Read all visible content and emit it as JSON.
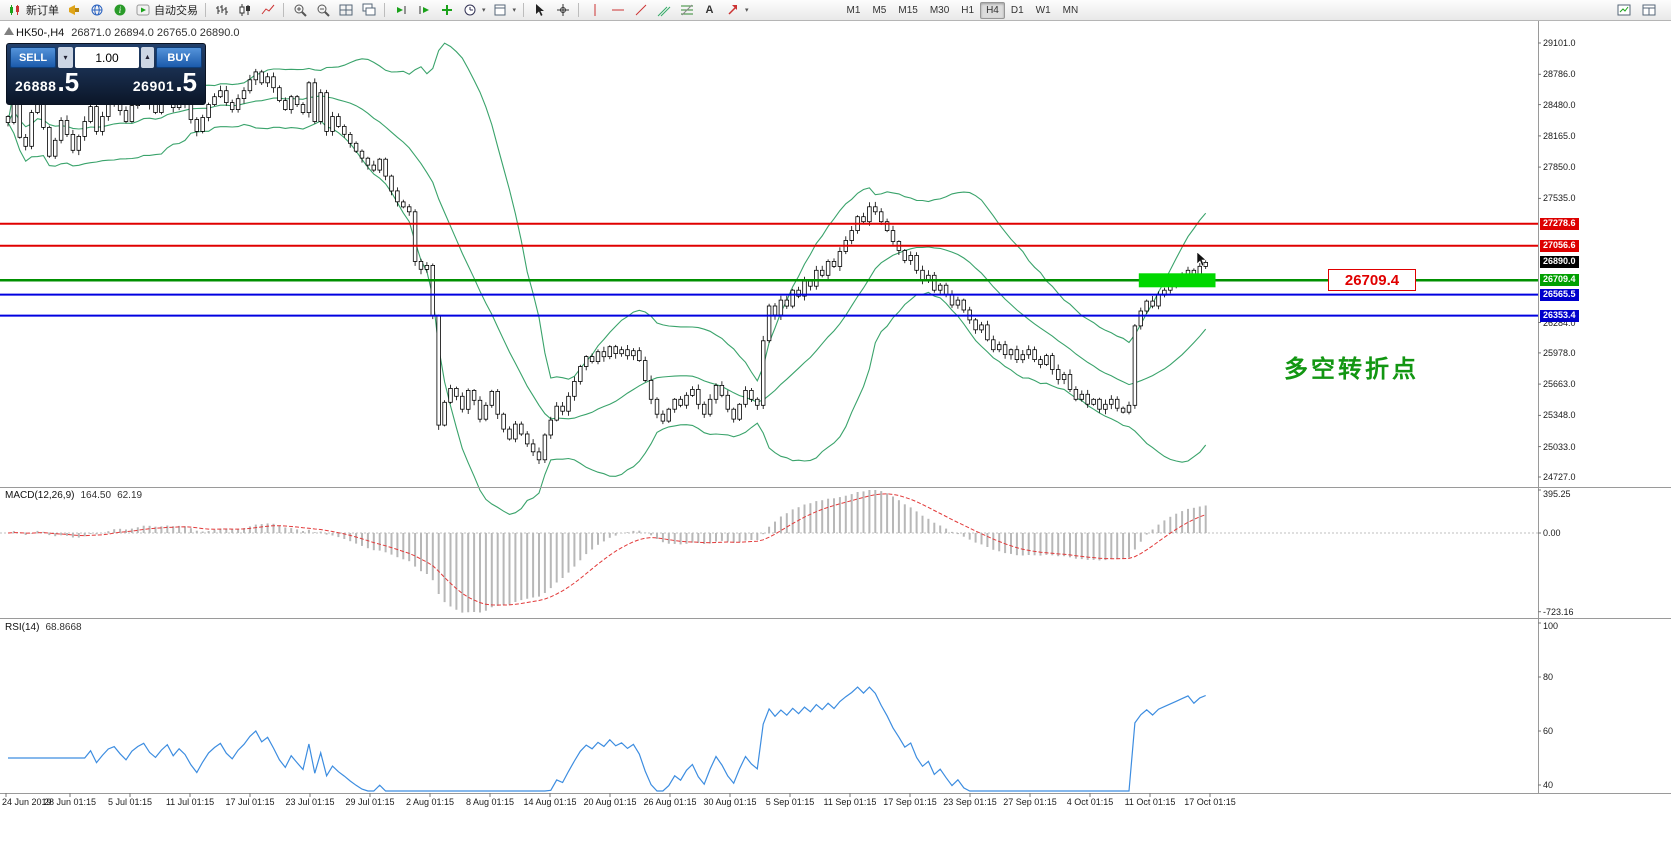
{
  "toolbar": {
    "new_order": "新订单",
    "auto_trading": "自动交易",
    "timeframes": [
      "M1",
      "M5",
      "M15",
      "M30",
      "H1",
      "H4",
      "D1",
      "W1",
      "MN"
    ],
    "active_timeframe": "H4"
  },
  "chart_header": {
    "symbol_period": "HK50-,H4",
    "ohlc": "26871.0 26894.0 26765.0 26890.0"
  },
  "trade_panel": {
    "sell_label": "SELL",
    "buy_label": "BUY",
    "volume": "1.00",
    "sell_price": {
      "main": "26888",
      "big": ".5"
    },
    "buy_price": {
      "main": "26901",
      "big": ".5"
    }
  },
  "annotations": {
    "price_callout": "26709.4",
    "note_cn": "多空转折点"
  },
  "indicators": {
    "macd": {
      "name": "MACD(12,26,9)",
      "value_main": "164.50",
      "value_signal": "62.19",
      "axis_labels": [
        "395.25",
        "0.00",
        "-723.16"
      ],
      "axis_values": [
        395.25,
        0,
        -723.16
      ]
    },
    "rsi": {
      "name": "RSI(14)",
      "value": "68.8668",
      "axis_labels": [
        "100",
        "80",
        "60",
        "40"
      ],
      "axis_values": [
        100,
        80,
        60,
        40
      ]
    }
  },
  "chart_data": {
    "type": "candlestick",
    "title": "HK50-,H4",
    "period": "H4",
    "current_bar_ohlc": {
      "open": 26871.0,
      "high": 26894.0,
      "low": 26765.0,
      "close": 26890.0
    },
    "bid": 26888.5,
    "ask": 26901.5,
    "price_levels": [
      29101.0,
      28786.0,
      28480.0,
      28165.0,
      27850.0,
      27535.0,
      26284.0,
      25978.0,
      25663.0,
      25348.0,
      25033.0,
      24727.0
    ],
    "price_tags": [
      {
        "label": "27278.6",
        "value": 27278.6,
        "color": "#dd0000"
      },
      {
        "label": "27056.6",
        "value": 27056.6,
        "color": "#dd0000"
      },
      {
        "label": "26890.0",
        "value": 26890.0,
        "color": "#000000"
      },
      {
        "label": "26709.4",
        "value": 26709.4,
        "color": "#00a000"
      },
      {
        "label": "26565.5",
        "value": 26565.5,
        "color": "#0000cc"
      },
      {
        "label": "26353.4",
        "value": 26353.4,
        "color": "#0000cc"
      }
    ],
    "hlines": [
      {
        "value": 27278.6,
        "color": "#e00000",
        "width": 2
      },
      {
        "value": 27056.6,
        "color": "#e00000",
        "width": 2
      },
      {
        "value": 26709.4,
        "color": "#009000",
        "width": 2.5
      },
      {
        "value": 26565.5,
        "color": "#0000e0",
        "width": 2
      },
      {
        "value": 26353.4,
        "color": "#0000e0",
        "width": 2
      }
    ],
    "highlight_zone": {
      "value": 26709.4,
      "from_candle": 192,
      "to_candle": 205,
      "color": "#00d800"
    },
    "time_labels": [
      "24 Jun 2019",
      "28 Jun 01:15",
      "5 Jul 01:15",
      "11 Jul 01:15",
      "17 Jul 01:15",
      "23 Jul 01:15",
      "29 Jul 01:15",
      "2 Aug 01:15",
      "8 Aug 01:15",
      "14 Aug 01:15",
      "20 Aug 01:15",
      "26 Aug 01:15",
      "30 Aug 01:15",
      "5 Sep 01:15",
      "11 Sep 01:15",
      "17 Sep 01:15",
      "23 Sep 01:15",
      "27 Sep 01:15",
      "4 Oct 01:15",
      "11 Oct 01:15",
      "17 Oct 01:15"
    ],
    "closes": [
      28300,
      28520,
      28150,
      28060,
      28400,
      28600,
      28250,
      27960,
      28120,
      28320,
      28180,
      28020,
      28160,
      28310,
      28460,
      28210,
      28360,
      28500,
      28550,
      28420,
      28310,
      28470,
      28560,
      28620,
      28480,
      28400,
      28520,
      28610,
      28450,
      28560,
      28480,
      28330,
      28210,
      28350,
      28480,
      28560,
      28620,
      28500,
      28430,
      28540,
      28620,
      28730,
      28810,
      28700,
      28760,
      28650,
      28520,
      28430,
      28560,
      28480,
      28400,
      28700,
      28310,
      28600,
      28210,
      28360,
      28260,
      28180,
      28090,
      28010,
      27940,
      27870,
      27820,
      27930,
      27760,
      27610,
      27500,
      27450,
      27400,
      26900,
      26820,
      26860,
      26350,
      25250,
      25480,
      25620,
      25540,
      25410,
      25600,
      25500,
      25310,
      25450,
      25590,
      25360,
      25210,
      25110,
      25260,
      25160,
      25060,
      24980,
      24900,
      25150,
      25300,
      25440,
      25390,
      25540,
      25690,
      25840,
      25940,
      25890,
      25990,
      25940,
      26040,
      25970,
      26010,
      25950,
      26000,
      25900,
      25700,
      25510,
      25360,
      25290,
      25410,
      25510,
      25450,
      25550,
      25610,
      25460,
      25360,
      25510,
      25650,
      25550,
      25410,
      25310,
      25460,
      25600,
      25510,
      25450,
      26100,
      26450,
      26360,
      26510,
      26450,
      26610,
      26550,
      26700,
      26650,
      26810,
      26760,
      26900,
      26850,
      27000,
      27110,
      27210,
      27350,
      27300,
      27450,
      27400,
      27300,
      27210,
      27100,
      27010,
      26910,
      26960,
      26810,
      26710,
      26760,
      26610,
      26660,
      26560,
      26460,
      26510,
      26410,
      26310,
      26210,
      26260,
      26110,
      26010,
      26060,
      25960,
      26010,
      25910,
      25960,
      26010,
      25910,
      25860,
      25950,
      25810,
      25710,
      25760,
      25610,
      25510,
      25560,
      25460,
      25510,
      25410,
      25460,
      25510,
      25420,
      25380,
      25450,
      26250,
      26400,
      26500,
      26450,
      26560,
      26610,
      26660,
      26710,
      26760,
      26810,
      26760,
      26850,
      26890
    ],
    "overlays": {
      "bollinger_period": 20,
      "bollinger_deviation": 2,
      "bollinger_color": "#3aa36b"
    },
    "macd_params": [
      12,
      26,
      9
    ],
    "rsi_period": 14
  }
}
